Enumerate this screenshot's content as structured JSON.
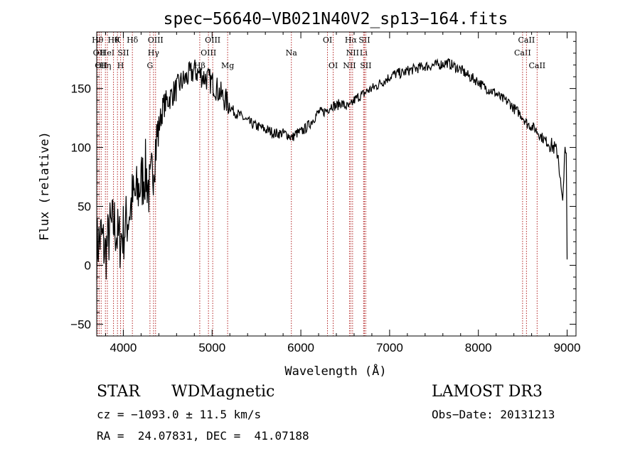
{
  "chart_data": {
    "type": "line",
    "title": "spec−56640−VB021N40V2_sp13−164.fits",
    "xlabel": "Wavelength (Å)",
    "ylabel": "Flux (relative)",
    "xlim": [
      3700,
      9100
    ],
    "ylim": [
      -60,
      198
    ],
    "x_ticks": [
      4000,
      5000,
      6000,
      7000,
      8000,
      9000
    ],
    "y_ticks": [
      -50,
      0,
      50,
      100,
      150
    ],
    "series": [
      {
        "name": "spectrum",
        "x": [
          3700,
          3750,
          3800,
          3850,
          3900,
          3950,
          4000,
          4050,
          4100,
          4150,
          4200,
          4250,
          4300,
          4350,
          4400,
          4450,
          4500,
          4550,
          4600,
          4650,
          4700,
          4750,
          4800,
          4850,
          4900,
          4950,
          5000,
          5050,
          5100,
          5150,
          5200,
          5250,
          5300,
          5350,
          5400,
          5450,
          5500,
          5550,
          5600,
          5650,
          5700,
          5750,
          5800,
          5850,
          5900,
          5950,
          6000,
          6050,
          6100,
          6150,
          6200,
          6250,
          6300,
          6350,
          6400,
          6450,
          6500,
          6550,
          6600,
          6650,
          6700,
          6750,
          6800,
          6850,
          6900,
          6950,
          7000,
          7050,
          7100,
          7150,
          7200,
          7250,
          7300,
          7350,
          7400,
          7450,
          7500,
          7550,
          7600,
          7650,
          7700,
          7750,
          7800,
          7850,
          7900,
          7950,
          8000,
          8050,
          8100,
          8150,
          8200,
          8250,
          8300,
          8350,
          8400,
          8450,
          8500,
          8550,
          8600,
          8650,
          8700,
          8750,
          8800,
          8850,
          8900,
          8925,
          8950,
          8970,
          8990,
          9000
        ],
        "y": [
          15,
          25,
          10,
          30,
          35,
          20,
          28,
          40,
          55,
          60,
          70,
          80,
          60,
          95,
          118,
          135,
          140,
          145,
          150,
          155,
          158,
          162,
          165,
          163,
          160,
          158,
          155,
          150,
          145,
          140,
          135,
          130,
          128,
          125,
          122,
          120,
          118,
          117,
          115,
          114,
          112,
          112,
          112,
          111,
          108,
          112,
          113,
          116,
          120,
          125,
          130,
          130,
          132,
          136,
          135,
          138,
          135,
          134,
          140,
          143,
          145,
          148,
          150,
          152,
          155,
          157,
          160,
          162,
          163,
          163,
          165,
          166,
          167,
          168,
          169,
          169,
          170,
          170,
          171,
          172,
          170,
          168,
          166,
          163,
          160,
          158,
          156,
          152,
          150,
          148,
          146,
          142,
          140,
          138,
          133,
          130,
          126,
          120,
          118,
          115,
          110,
          106,
          103,
          100,
          94,
          70,
          50,
          95,
          92,
          5
        ],
        "style": "black-line"
      }
    ],
    "lines": [
      {
        "wavelength": 3710,
        "label": "Hθ",
        "row": 0
      },
      {
        "wavelength": 3728,
        "label": "OII",
        "row": 1
      },
      {
        "wavelength": 3750,
        "label": "OII",
        "row": 2
      },
      {
        "wavelength": 3798,
        "label": "Hη",
        "row": 2
      },
      {
        "wavelength": 3820,
        "label": "HeI",
        "row": 1
      },
      {
        "wavelength": 3889,
        "label": "Hθ",
        "row": 0
      },
      {
        "wavelength": 3934,
        "label": "K",
        "row": 0
      },
      {
        "wavelength": 3969,
        "label": "H",
        "row": 2
      },
      {
        "wavelength": 4000,
        "label": "SII",
        "row": 1
      },
      {
        "wavelength": 4102,
        "label": "Hδ",
        "row": 0
      },
      {
        "wavelength": 4300,
        "label": "G",
        "row": 2
      },
      {
        "wavelength": 4340,
        "label": "Hγ",
        "row": 1
      },
      {
        "wavelength": 4363,
        "label": "OIII",
        "row": 0
      },
      {
        "wavelength": 4861,
        "label": "Hβ",
        "row": 2
      },
      {
        "wavelength": 4959,
        "label": "OIII",
        "row": 1
      },
      {
        "wavelength": 5007,
        "label": "OIII",
        "row": 0
      },
      {
        "wavelength": 5175,
        "label": "Mg",
        "row": 2
      },
      {
        "wavelength": 5893,
        "label": "Na",
        "row": 1
      },
      {
        "wavelength": 6300,
        "label": "OI",
        "row": 0
      },
      {
        "wavelength": 6364,
        "label": "OI",
        "row": 2
      },
      {
        "wavelength": 6548,
        "label": "NII",
        "row": 2
      },
      {
        "wavelength": 6563,
        "label": "Hα",
        "row": 0
      },
      {
        "wavelength": 6583,
        "label": "NII",
        "row": 1
      },
      {
        "wavelength": 6707,
        "label": "Li",
        "row": 1
      },
      {
        "wavelength": 6716,
        "label": "SII",
        "row": 0
      },
      {
        "wavelength": 6731,
        "label": "SII",
        "row": 2
      },
      {
        "wavelength": 8498,
        "label": "CaII",
        "row": 1
      },
      {
        "wavelength": 8542,
        "label": "CaII",
        "row": 0
      },
      {
        "wavelength": 8662,
        "label": "CaII",
        "row": 2
      }
    ],
    "line_color": "#b22222",
    "grid": false
  },
  "footer": {
    "object_class": "STAR",
    "subclass": "WDMagnetic",
    "survey": "LAMOST DR3",
    "cz": "cz = −1093.0 ± 11.5 km/s",
    "obs_date": "Obs−Date: 20131213",
    "coords": "RA =  24.07831, DEC =  41.07188"
  }
}
